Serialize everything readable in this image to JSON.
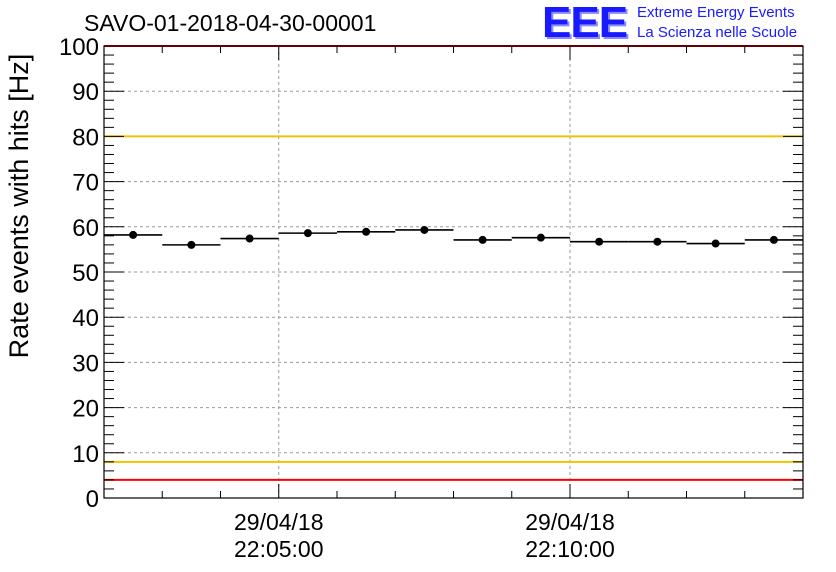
{
  "header": {
    "run_title": "SAVO-01-2018-04-30-00001",
    "logo_letters": "EEE",
    "logo_line1": "Extreme Energy Events",
    "logo_line2": "La Scienza nelle Scuole"
  },
  "chart_data": {
    "type": "scatter",
    "title": "SAVO-01-2018-04-30-00001",
    "ylabel": "Rate events with hits [Hz]",
    "xlabel": "",
    "ylim": [
      0,
      100
    ],
    "yticks": [
      0,
      10,
      20,
      30,
      40,
      50,
      60,
      70,
      80,
      90,
      100
    ],
    "xlim": [
      "29/04/18 22:02:00",
      "29/04/18 22:14:00"
    ],
    "xticks": [
      {
        "date": "29/04/18",
        "time": "22:05:00"
      },
      {
        "date": "29/04/18",
        "time": "22:10:00"
      }
    ],
    "grid": true,
    "series": [
      {
        "x": [
          "22:02:30",
          "22:03:30",
          "22:04:30",
          "22:05:30",
          "22:06:30",
          "22:07:30",
          "22:08:30",
          "22:09:30",
          "22:10:30",
          "22:11:30",
          "22:12:30",
          "22:13:30"
        ],
        "bin_width_seconds": 60,
        "values": [
          58.2,
          56.0,
          57.4,
          58.6,
          58.9,
          59.3,
          57.1,
          57.6,
          56.7,
          56.7,
          56.3,
          57.1
        ],
        "color": "#000000"
      }
    ],
    "reference_lines": [
      {
        "y": 100,
        "color": "#ff0000"
      },
      {
        "y": 80,
        "color": "#f2c200"
      },
      {
        "y": 8,
        "color": "#f2c200"
      },
      {
        "y": 4,
        "color": "#ff0000"
      }
    ]
  }
}
